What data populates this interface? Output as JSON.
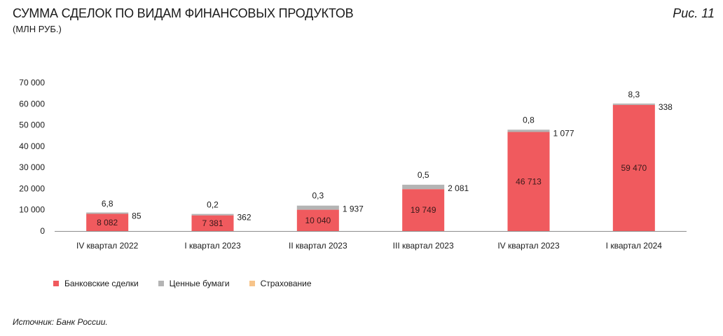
{
  "title": "СУММА СДЕЛОК ПО ВИДАМ ФИНАНСОВЫХ ПРОДУКТОВ",
  "subtitle": "(МЛН РУБ.)",
  "figure_label": "Рис. 11",
  "source": "Источник: Банк России.",
  "colors": {
    "bank": "#f05a5e",
    "securities": "#b4b4b4",
    "insurance": "#f7c48a"
  },
  "chart_data": {
    "type": "bar",
    "stacked": true,
    "title": "СУММА СДЕЛОК ПО ВИДАМ ФИНАНСОВЫХ ПРОДУКТОВ",
    "ylabel": "(МЛН РУБ.)",
    "ylim": [
      0,
      70000
    ],
    "yticks": [
      0,
      10000,
      20000,
      30000,
      40000,
      50000,
      60000,
      70000
    ],
    "ytick_labels": [
      "0",
      "10 000",
      "20 000",
      "30 000",
      "40 000",
      "50 000",
      "60 000",
      "70 000"
    ],
    "categories": [
      "IV квартал 2022",
      "I квартал 2023",
      "II квартал 2023",
      "III квартал 2023",
      "IV квартал 2023",
      "I квартал 2024"
    ],
    "series": [
      {
        "name": "Банковские сделки",
        "values": [
          8082,
          7381,
          10040,
          19749,
          46713,
          59470
        ],
        "labels": [
          "8 082",
          "7 381",
          "10 040",
          "19 749",
          "46 713",
          "59 470"
        ]
      },
      {
        "name": "Ценные бумаги",
        "values": [
          85,
          362,
          1937,
          2081,
          1077,
          338
        ],
        "labels": [
          "85",
          "362",
          "1 937",
          "2 081",
          "1 077",
          "338"
        ]
      },
      {
        "name": "Страхование",
        "values": [
          6.8,
          0.2,
          0.3,
          0.5,
          0.8,
          8.3
        ],
        "labels": [
          "6,8",
          "0,2",
          "0,3",
          "0,5",
          "0,8",
          "8,3"
        ]
      }
    ],
    "grid": false,
    "legend_position": "bottom-left"
  }
}
